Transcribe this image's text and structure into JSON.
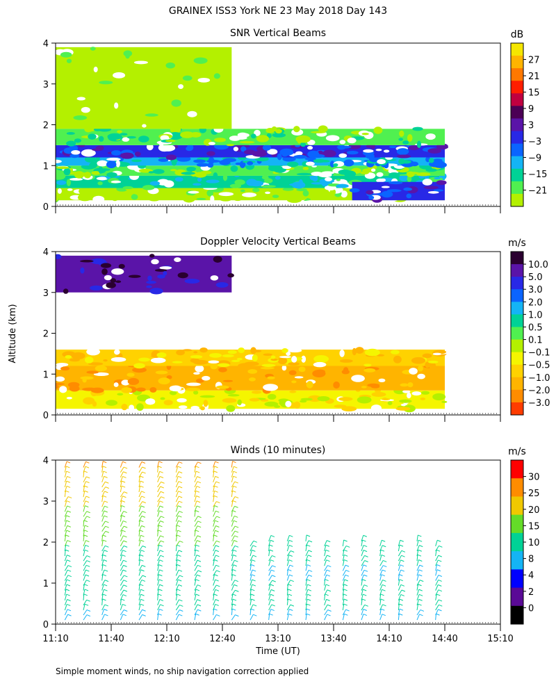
{
  "figure": {
    "title": "GRAINEX ISS3 York NE  23 May 2018 Day 143",
    "ylabel": "Altitude (km)",
    "xlabel": "Time (UT)",
    "footnote": "Simple moment winds, no ship navigation correction applied"
  },
  "colors": {
    "white": "#ffffff",
    "frame": "#000000"
  },
  "chart_data": [
    {
      "type": "heatmap",
      "title": "SNR Vertical Beams",
      "colorbar_label": "dB",
      "colorbar_ticks": [
        "27",
        "21",
        "15",
        "9",
        "3",
        "−3",
        "−9",
        "−15",
        "−21"
      ],
      "colorbar_colors": [
        "#f5e600",
        "#ffb400",
        "#ff7800",
        "#ff1e00",
        "#c00040",
        "#4b0055",
        "#5a14a8",
        "#2828e6",
        "#0a64ff",
        "#14b4f5",
        "#00d296",
        "#50f050",
        "#b4f000"
      ],
      "yticks": [
        "0",
        "1",
        "2",
        "3",
        "4"
      ],
      "ylim": [
        0,
        4
      ],
      "xlim": [
        0,
        240
      ],
      "bands": [
        {
          "y0": 0.15,
          "y1": 0.45,
          "x0": 0,
          "x1": 210,
          "color_index": 12
        },
        {
          "y0": 0.45,
          "y1": 0.75,
          "x0": 0,
          "x1": 210,
          "color_index": 10
        },
        {
          "y0": 0.75,
          "y1": 1.0,
          "x0": 0,
          "x1": 210,
          "color_index": 11
        },
        {
          "y0": 1.0,
          "y1": 1.2,
          "x0": 0,
          "x1": 210,
          "color_index": 9
        },
        {
          "y0": 1.2,
          "y1": 1.5,
          "x0": 0,
          "x1": 210,
          "color_index": 7
        },
        {
          "y0": 1.5,
          "y1": 1.9,
          "x0": 0,
          "x1": 210,
          "color_index": 11
        },
        {
          "y0": 1.9,
          "y1": 3.9,
          "x0": 0,
          "x1": 95,
          "color_index": 12
        },
        {
          "y0": 0.15,
          "y1": 0.6,
          "x0": 160,
          "x1": 210,
          "color_index": 7
        }
      ]
    },
    {
      "type": "heatmap",
      "title": "Doppler Velocity Vertical Beams",
      "colorbar_label": "m/s",
      "colorbar_ticks": [
        "10.0",
        "5.0",
        "3.0",
        "2.0",
        "1.0",
        "0.5",
        "0.1",
        "−0.1",
        "−0.5",
        "−1.0",
        "−2.0",
        "−3.0"
      ],
      "colorbar_colors": [
        "#2a0030",
        "#5a14a8",
        "#2828e6",
        "#0a64ff",
        "#14b4f5",
        "#00d296",
        "#50f050",
        "#b4f000",
        "#f5f500",
        "#ffd200",
        "#ffb400",
        "#ff8c00",
        "#ff3c00"
      ],
      "yticks": [
        "0",
        "1",
        "2",
        "3",
        "4"
      ],
      "ylim": [
        0,
        4
      ],
      "xlim": [
        0,
        240
      ],
      "bands": [
        {
          "y0": 0.15,
          "y1": 0.6,
          "x0": 0,
          "x1": 210,
          "color_index": 8
        },
        {
          "y0": 0.6,
          "y1": 1.2,
          "x0": 0,
          "x1": 210,
          "color_index": 10
        },
        {
          "y0": 1.2,
          "y1": 1.6,
          "x0": 0,
          "x1": 210,
          "color_index": 9
        },
        {
          "y0": 3.0,
          "y1": 3.9,
          "x0": 0,
          "x1": 95,
          "color_index": 1
        }
      ]
    },
    {
      "type": "wind_barbs",
      "title": "Winds (10 minutes)",
      "colorbar_label": "m/s",
      "colorbar_ticks": [
        "30",
        "25",
        "20",
        "15",
        "10",
        "8",
        "4",
        "2",
        "0"
      ],
      "colorbar_colors": [
        "#ff0000",
        "#ff8c00",
        "#f0c800",
        "#64dc28",
        "#00d296",
        "#14b4f5",
        "#0000ff",
        "#5a0a96",
        "#000000"
      ],
      "yticks": [
        "0",
        "1",
        "2",
        "3",
        "4"
      ],
      "xticks": [
        "11:10",
        "11:40",
        "12:10",
        "12:40",
        "13:10",
        "13:40",
        "14:10",
        "14:40",
        "15:10"
      ],
      "ylim": [
        0,
        4
      ],
      "xlim": [
        0,
        240
      ],
      "bounds": [
        0,
        2,
        4,
        8,
        10,
        15,
        20,
        25,
        30,
        35
      ]
    }
  ]
}
